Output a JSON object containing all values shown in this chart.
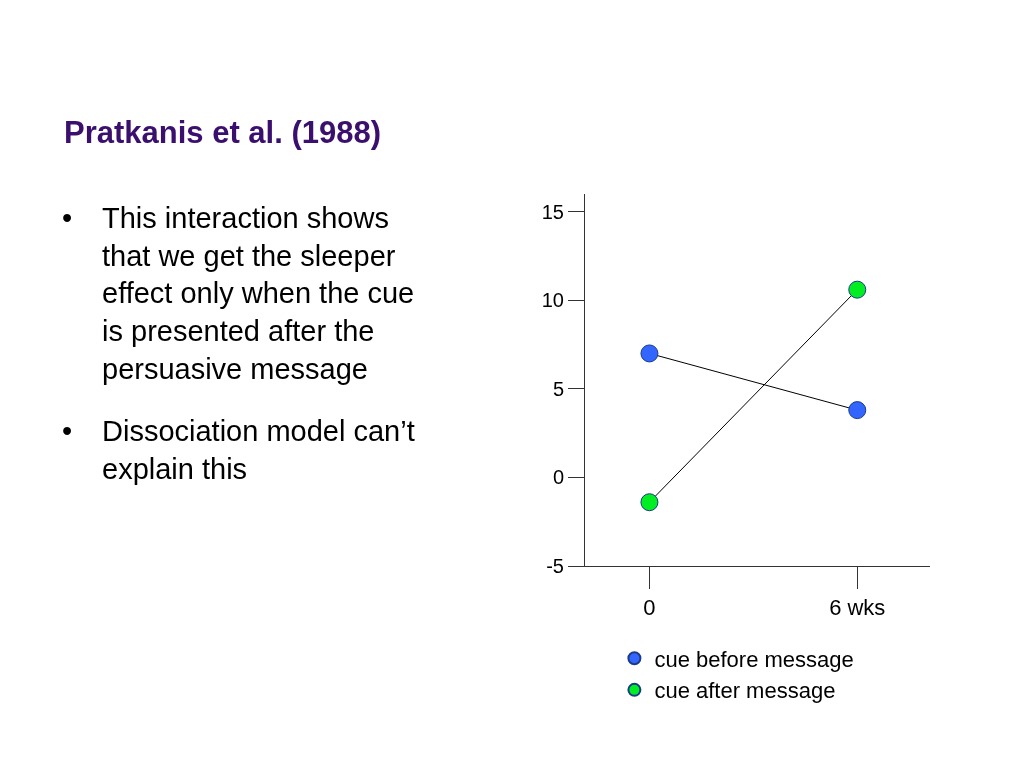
{
  "chart_data": {
    "type": "line",
    "title": "Pratkanis et al. (1988)",
    "annotations": [
      "• This interaction shows that we get the sleeper effect only when the cue is presented after the persuasive message",
      "• Dissociation model can’t explain this"
    ],
    "categories": [
      "0",
      "6 wks"
    ],
    "series": [
      {
        "name": "cue before message",
        "color": "#3366ff",
        "values": [
          7,
          3.8
        ]
      },
      {
        "name": "cue after message",
        "color": "#00ee22",
        "values": [
          -1.4,
          10.6
        ]
      }
    ],
    "ylim": [
      -5,
      16
    ],
    "yticks": [
      -5,
      0,
      5,
      10,
      15
    ],
    "legend": "bottom",
    "marker": "circle",
    "line_style": "solid"
  }
}
